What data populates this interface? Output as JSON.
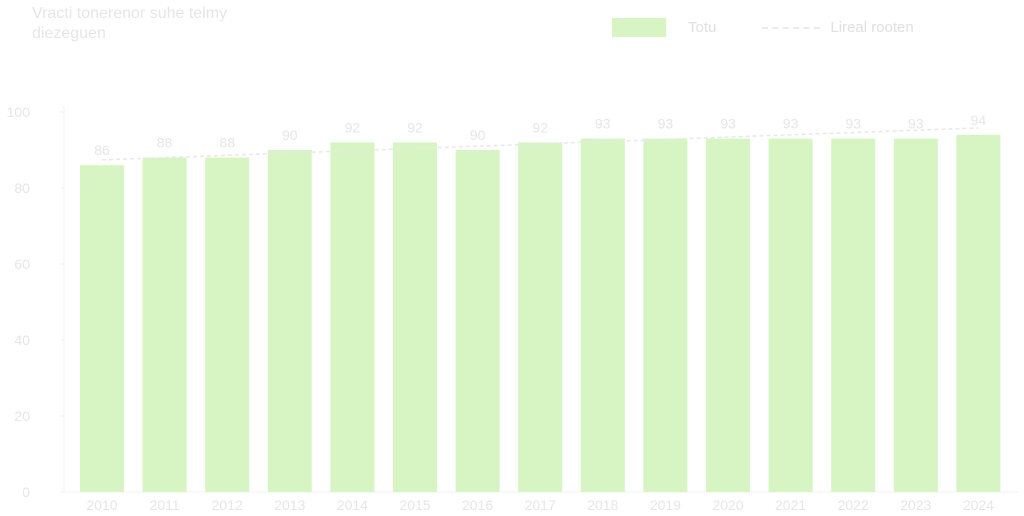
{
  "chart_data": {
    "type": "bar",
    "title_lines": [
      "Vracti tonerenor suhe telmy",
      "diezeguen"
    ],
    "categories": [
      "2010",
      "2011",
      "2012",
      "2013",
      "2014",
      "2015",
      "2016",
      "2017",
      "2018",
      "2019",
      "2020",
      "2021",
      "2022",
      "2023",
      "2024"
    ],
    "series": [
      {
        "name": "Totu",
        "values": [
          86,
          88,
          88,
          90,
          92,
          92,
          90,
          92,
          93,
          93,
          93,
          93,
          93,
          93,
          94
        ]
      }
    ],
    "data_labels": [
      "86",
      "88",
      "88",
      "90",
      "92",
      "92",
      "90",
      "92",
      "93",
      "93",
      "93",
      "93",
      "93",
      "93",
      "94"
    ],
    "trend": {
      "name": "Lireal rooten",
      "values": [
        87.4,
        88.0,
        88.6,
        89.2,
        89.8,
        90.4,
        91.0,
        91.6,
        92.2,
        92.8,
        93.4,
        94.0,
        94.6,
        95.2,
        95.8
      ]
    },
    "ylim": [
      0,
      100
    ],
    "yticks": [
      0,
      20,
      40,
      60,
      80,
      100
    ],
    "grid": false,
    "legend_position": "top-right",
    "colors": {
      "bar": "#d6f5c2",
      "trend": "#e8e8e8",
      "axis": "#f0f0f0",
      "text": "#e6e6e6"
    }
  }
}
